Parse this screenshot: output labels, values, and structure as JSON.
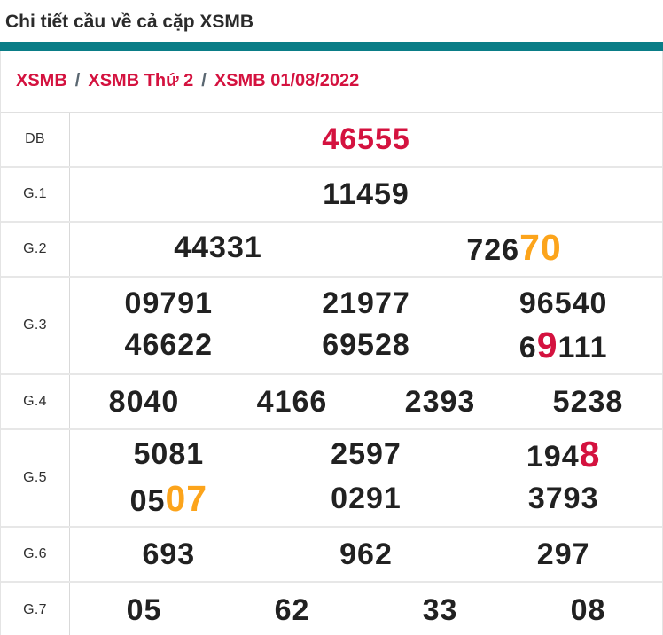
{
  "page_title": "Chi tiết cầu về cả cặp XSMB",
  "breadcrumb": {
    "separator": "/",
    "items": [
      {
        "label": "XSMB"
      },
      {
        "label": "XSMB Thứ 2"
      },
      {
        "label": "XSMB 01/08/2022"
      }
    ]
  },
  "colors": {
    "accent_teal": "#0a7d87",
    "crimson": "#d4123f",
    "orange": "#fca41b",
    "number_black": "#212121",
    "border_gray": "#e7e7e7"
  },
  "prize_table": {
    "rows": [
      {
        "label": "DB",
        "lines": [
          [
            [
              {
                "text": "46555",
                "style": "crimson"
              }
            ]
          ]
        ]
      },
      {
        "label": "G.1",
        "lines": [
          [
            [
              {
                "text": "11459"
              }
            ]
          ]
        ]
      },
      {
        "label": "G.2",
        "lines": [
          [
            [
              {
                "text": "44331"
              }
            ],
            [
              {
                "text": "726"
              },
              {
                "text": "70",
                "style": "orange-big"
              }
            ]
          ]
        ]
      },
      {
        "label": "G.3",
        "lines": [
          [
            [
              {
                "text": "09791"
              }
            ],
            [
              {
                "text": "21977"
              }
            ],
            [
              {
                "text": "96540"
              }
            ]
          ],
          [
            [
              {
                "text": "46622"
              }
            ],
            [
              {
                "text": "69528"
              }
            ],
            [
              {
                "text": "6"
              },
              {
                "text": "9",
                "style": "crimson-big"
              },
              {
                "text": "111"
              }
            ]
          ]
        ]
      },
      {
        "label": "G.4",
        "lines": [
          [
            [
              {
                "text": "8040"
              }
            ],
            [
              {
                "text": "4166"
              }
            ],
            [
              {
                "text": "2393"
              }
            ],
            [
              {
                "text": "5238"
              }
            ]
          ]
        ]
      },
      {
        "label": "G.5",
        "lines": [
          [
            [
              {
                "text": "5081"
              }
            ],
            [
              {
                "text": "2597"
              }
            ],
            [
              {
                "text": "194"
              },
              {
                "text": "8",
                "style": "crimson-big"
              }
            ]
          ],
          [
            [
              {
                "text": "05"
              },
              {
                "text": "07",
                "style": "orange-big"
              }
            ],
            [
              {
                "text": "0291"
              }
            ],
            [
              {
                "text": "3793"
              }
            ]
          ]
        ]
      },
      {
        "label": "G.6",
        "lines": [
          [
            [
              {
                "text": "693"
              }
            ],
            [
              {
                "text": "962"
              }
            ],
            [
              {
                "text": "297"
              }
            ]
          ]
        ]
      },
      {
        "label": "G.7",
        "lines": [
          [
            [
              {
                "text": "05"
              }
            ],
            [
              {
                "text": "62"
              }
            ],
            [
              {
                "text": "33"
              }
            ],
            [
              {
                "text": "08"
              }
            ]
          ]
        ]
      }
    ]
  }
}
